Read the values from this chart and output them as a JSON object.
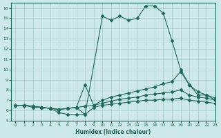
{
  "title": "",
  "xlabel": "Humidex (Indice chaleur)",
  "ylabel": "",
  "background_color": "#cce8e8",
  "grid_color": "#aacccc",
  "line_color": "#1a6b5a",
  "xlim": [
    -0.5,
    23
  ],
  "ylim": [
    5,
    16.5
  ],
  "yticks": [
    5,
    6,
    7,
    8,
    9,
    10,
    11,
    12,
    13,
    14,
    15,
    16
  ],
  "xticks": [
    0,
    1,
    2,
    3,
    4,
    5,
    6,
    7,
    8,
    9,
    10,
    11,
    12,
    13,
    14,
    15,
    16,
    17,
    18,
    19,
    20,
    21,
    22,
    23
  ],
  "series": [
    {
      "x": [
        0,
        1,
        2,
        3,
        4,
        5,
        6,
        7,
        8,
        10,
        11,
        12,
        13,
        14,
        15,
        16,
        17,
        18,
        19,
        20,
        21,
        22,
        23
      ],
      "y": [
        6.5,
        6.5,
        6.4,
        6.3,
        6.2,
        5.8,
        5.6,
        5.6,
        5.6,
        15.2,
        14.8,
        15.2,
        14.8,
        15.0,
        16.2,
        16.2,
        15.5,
        12.8,
        10.0,
        8.5,
        7.5,
        7.5,
        7.0
      ],
      "marker": "D",
      "markersize": 2.5,
      "linewidth": 0.8
    },
    {
      "x": [
        0,
        1,
        2,
        3,
        4,
        5,
        6,
        7,
        8,
        9,
        10,
        11,
        12,
        13,
        14,
        15,
        16,
        17,
        18,
        19,
        20,
        21,
        22,
        23
      ],
      "y": [
        6.5,
        6.5,
        6.4,
        6.3,
        6.2,
        6.1,
        6.2,
        6.3,
        8.5,
        6.5,
        7.0,
        7.3,
        7.5,
        7.7,
        7.9,
        8.1,
        8.3,
        8.6,
        8.8,
        9.8,
        8.5,
        7.8,
        7.5,
        7.2
      ],
      "marker": "D",
      "markersize": 2.5,
      "linewidth": 0.8
    },
    {
      "x": [
        0,
        1,
        2,
        3,
        4,
        5,
        6,
        7,
        8,
        9,
        10,
        11,
        12,
        13,
        14,
        15,
        16,
        17,
        18,
        19,
        20,
        21,
        22,
        23
      ],
      "y": [
        6.5,
        6.5,
        6.4,
        6.3,
        6.2,
        6.1,
        6.2,
        6.3,
        6.4,
        6.5,
        6.7,
        6.9,
        7.1,
        7.2,
        7.3,
        7.5,
        7.6,
        7.7,
        7.8,
        8.0,
        7.5,
        7.3,
        7.2,
        7.0
      ],
      "marker": "D",
      "markersize": 2.5,
      "linewidth": 0.8
    },
    {
      "x": [
        0,
        1,
        2,
        3,
        4,
        5,
        6,
        7,
        8,
        9,
        10,
        11,
        12,
        13,
        14,
        15,
        16,
        17,
        18,
        19,
        20,
        21,
        22,
        23
      ],
      "y": [
        6.5,
        6.5,
        6.3,
        6.3,
        6.2,
        6.1,
        6.2,
        6.3,
        5.6,
        6.3,
        6.5,
        6.6,
        6.7,
        6.8,
        6.9,
        7.0,
        7.0,
        7.1,
        7.1,
        7.2,
        7.0,
        6.9,
        6.8,
        6.7
      ],
      "marker": "D",
      "markersize": 2.5,
      "linewidth": 0.8
    }
  ]
}
